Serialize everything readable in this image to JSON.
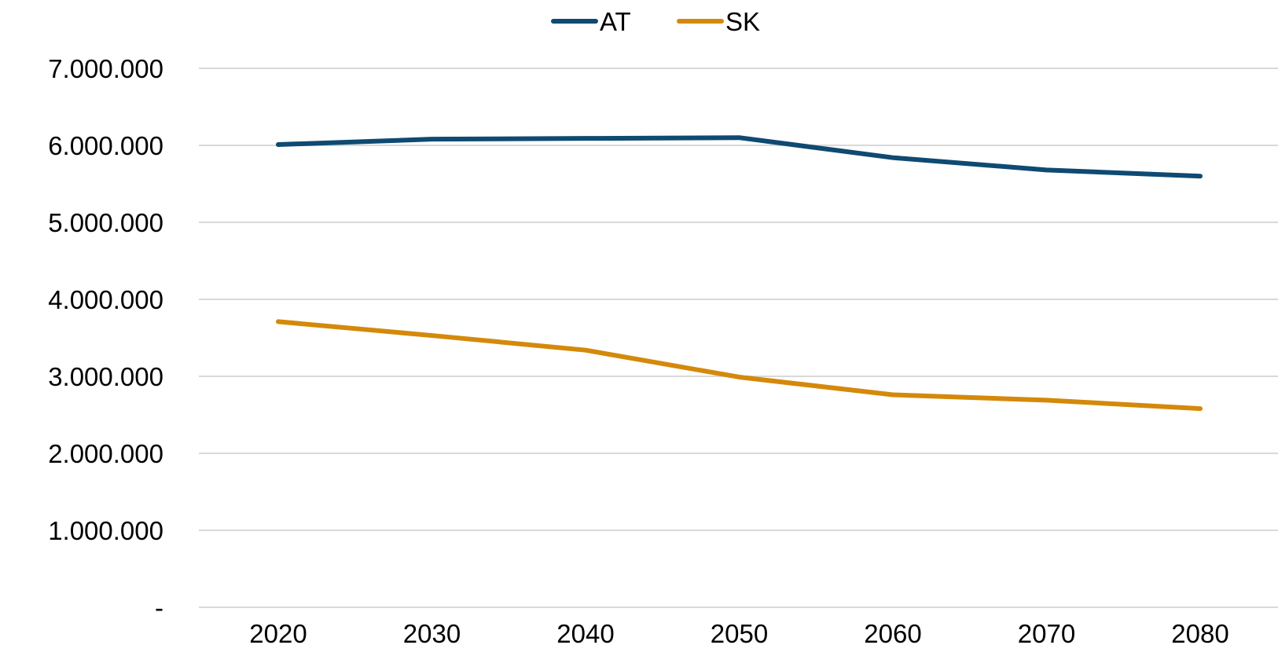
{
  "chart_data": {
    "type": "line",
    "x": [
      "2020",
      "2030",
      "2040",
      "2050",
      "2060",
      "2070",
      "2080"
    ],
    "series": [
      {
        "name": "AT",
        "color": "#0e4a72",
        "values": [
          6010000,
          6080000,
          6090000,
          6100000,
          5840000,
          5680000,
          5600000
        ]
      },
      {
        "name": "SK",
        "color": "#d4890a",
        "values": [
          3710000,
          3530000,
          3340000,
          2990000,
          2760000,
          2690000,
          2580000
        ]
      }
    ],
    "yticks": [
      {
        "value": 0,
        "label": "-"
      },
      {
        "value": 1000000,
        "label": "1.000.000"
      },
      {
        "value": 2000000,
        "label": "2.000.000"
      },
      {
        "value": 3000000,
        "label": "3.000.000"
      },
      {
        "value": 4000000,
        "label": "4.000.000"
      },
      {
        "value": 5000000,
        "label": "5.000.000"
      },
      {
        "value": 6000000,
        "label": "6.000.000"
      },
      {
        "value": 7000000,
        "label": "7.000.000"
      }
    ],
    "ylim": [
      0,
      7000000
    ],
    "title": "",
    "xlabel": "",
    "ylabel": "",
    "grid": "horizontal",
    "legend_position": "top-center"
  }
}
